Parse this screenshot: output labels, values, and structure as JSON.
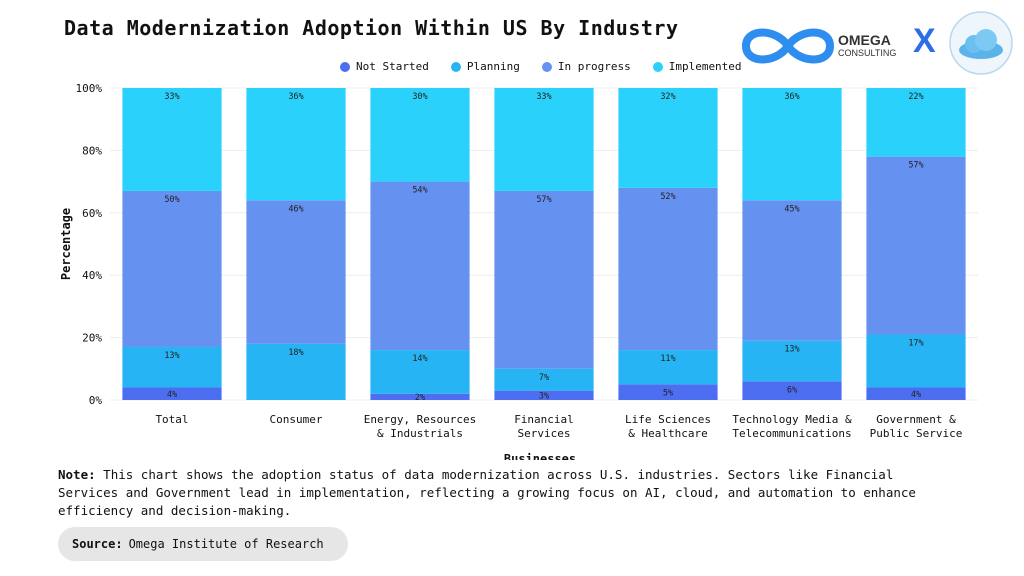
{
  "title": "Data Modernization Adoption Within US By Industry",
  "logo": {
    "brand": "OMEGA",
    "sub": "CONSULTING",
    "separator": "X"
  },
  "note": {
    "label": "Note:",
    "text": "This chart shows the adoption status of data modernization across U.S. industries. Sectors like Financial Services and Government lead in implementation, reflecting a growing focus on AI, cloud, and automation to enhance efficiency and decision-making."
  },
  "source": {
    "label": "Source:",
    "text": "Omega Institute of Research"
  },
  "colors": {
    "not_started": "#4e6ef2",
    "planning": "#27b4f4",
    "in_progress": "#6592f0",
    "implemented": "#2ad2fb"
  },
  "chart_data": {
    "type": "bar",
    "stacked": true,
    "xlabel": "Businesses",
    "ylabel": "Percentage",
    "ylim": [
      0,
      100
    ],
    "yticks": [
      "0%",
      "20%",
      "40%",
      "60%",
      "80%",
      "100%"
    ],
    "grid": true,
    "legend_position": "top-center",
    "categories": [
      [
        "Total"
      ],
      [
        "Consumer"
      ],
      [
        "Energy, Resources",
        "& Industrials"
      ],
      [
        "Financial",
        "Services"
      ],
      [
        "Life Sciences",
        "& Healthcare"
      ],
      [
        "Technology Media &",
        "Telecommunications"
      ],
      [
        "Government &",
        "Public Service"
      ]
    ],
    "series": [
      {
        "name": "Not Started",
        "key": "not_started",
        "values": [
          4,
          0,
          2,
          3,
          5,
          6,
          4
        ],
        "labels": [
          "4%",
          "",
          "2%",
          "3%",
          "5%",
          "6%",
          "4%"
        ]
      },
      {
        "name": "Planning",
        "key": "planning",
        "values": [
          13,
          18,
          14,
          7,
          11,
          13,
          17
        ],
        "labels": [
          "13%",
          "18%",
          "14%",
          "7%",
          "11%",
          "13%",
          "17%"
        ]
      },
      {
        "name": "In progress",
        "key": "in_progress",
        "values": [
          50,
          46,
          54,
          57,
          52,
          45,
          57
        ],
        "labels": [
          "50%",
          "46%",
          "54%",
          "57%",
          "52%",
          "45%",
          "57%"
        ]
      },
      {
        "name": "Implemented",
        "key": "implemented",
        "values": [
          33,
          36,
          30,
          33,
          32,
          36,
          22
        ],
        "labels": [
          "33%",
          "36%",
          "30%",
          "33%",
          "32%",
          "36%",
          "22%"
        ]
      }
    ]
  }
}
